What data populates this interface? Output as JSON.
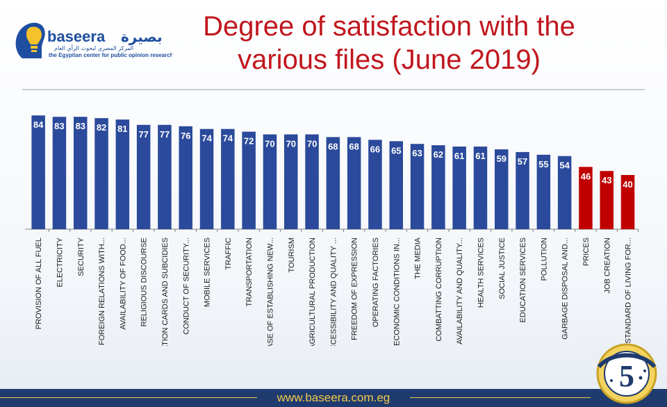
{
  "header": {
    "title_line1": "Degree of satisfaction with the",
    "title_line2": "various files (June 2019)"
  },
  "logo": {
    "name_latin": "baseera",
    "name_arabic": "بصيرة",
    "tagline_arabic": "المركز المصري لبحوث الرأي العام",
    "tagline_english": "the Egyptian center for public opinion research",
    "icon": "head-lightbulb-icon"
  },
  "footer": {
    "url": "www.baseera.com.eg"
  },
  "badge": {
    "number": "5",
    "icon": "anniversary-badge-icon"
  },
  "colors": {
    "bar_blue": "#2b4a9b",
    "bar_red": "#c00000",
    "title_red": "#c0161d",
    "footer": "#1f3b6e",
    "accent_gold": "#f2c94c"
  },
  "chart_data": {
    "type": "bar",
    "title": "Degree of satisfaction with the various files (June 2019)",
    "xlabel": "",
    "ylabel": "",
    "ylim": [
      0,
      90
    ],
    "grid": false,
    "categories": [
      "PROVISION OF ALL FUEL",
      "ELECTRICITY",
      "SECURITY",
      "FOREIGN RELATIONS WITH...",
      "AVAILABILITY OF FOOD...",
      "RELIGIOUS DISCOURSE",
      "RATION CARDS AND SUBCIDIES",
      "CONDUCT OF SECURITY...",
      "MOBILE SERVICES",
      "TRAFFIC",
      "TRANSPORTATION",
      "EASE OF ESTABLISHING NEW...",
      "TOURISM",
      "AGRICULTURAL PRODUCTION",
      "ACCESSIBILITY AND QUALITY ...",
      "FREEDOM OF EXPRESSION",
      "OPERATING FACTORIES",
      "ECONOMIC CONDITIONS IN...",
      "THE MEDIA",
      "COMBATTING CORRUPTION",
      "AVAILABILITY AND QUALITY...",
      "HEALTH SERVICES",
      "SOCIAL JUSTICE",
      "EDUCATION SERVICES",
      "POLLUTION",
      "GARBAGE DISPOSAL AND...",
      "PRICES",
      "JOB CREATION",
      "STANDARD OF LIVING FOR..."
    ],
    "values": [
      84,
      83,
      83,
      82,
      81,
      77,
      77,
      76,
      74,
      74,
      72,
      70,
      70,
      70,
      68,
      68,
      66,
      65,
      63,
      62,
      61,
      61,
      59,
      57,
      55,
      54,
      46,
      43,
      40
    ],
    "highlight": [
      "blue",
      "blue",
      "blue",
      "blue",
      "blue",
      "blue",
      "blue",
      "blue",
      "blue",
      "blue",
      "blue",
      "blue",
      "blue",
      "blue",
      "blue",
      "blue",
      "blue",
      "blue",
      "blue",
      "blue",
      "blue",
      "blue",
      "blue",
      "blue",
      "blue",
      "blue",
      "red",
      "red",
      "red"
    ]
  }
}
